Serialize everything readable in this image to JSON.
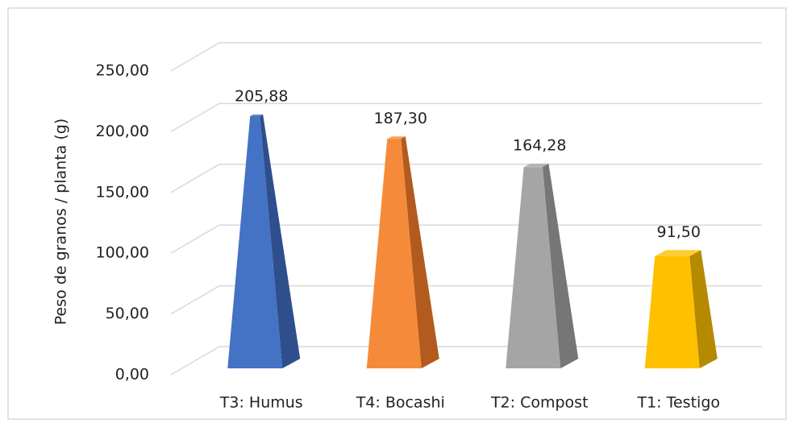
{
  "chart_data": {
    "type": "pyramid",
    "y_label": "Peso de granos / planta (g)",
    "categories": [
      "T3: Humus",
      "T4: Bocashi",
      "T2: Compost",
      "T1: Testigo"
    ],
    "values": [
      205.88,
      187.3,
      164.28,
      91.5
    ],
    "value_labels": [
      "205,88",
      "187,30",
      "164,28",
      "91,50"
    ],
    "colors": [
      "#4472c4",
      "#f58b3a",
      "#a5a5a5",
      "#ffc000"
    ],
    "side_colors": [
      "#2f4f8c",
      "#b35a1f",
      "#767676",
      "#b58900"
    ],
    "ylim": [
      0,
      250
    ],
    "yticks": [
      {
        "value": 0,
        "label": "0,00"
      },
      {
        "value": 50,
        "label": "50,00"
      },
      {
        "value": 100,
        "label": "100,00"
      },
      {
        "value": 150,
        "label": "150,00"
      },
      {
        "value": 200,
        "label": "200,00"
      },
      {
        "value": 250,
        "label": "250,00"
      }
    ],
    "grid": true
  }
}
